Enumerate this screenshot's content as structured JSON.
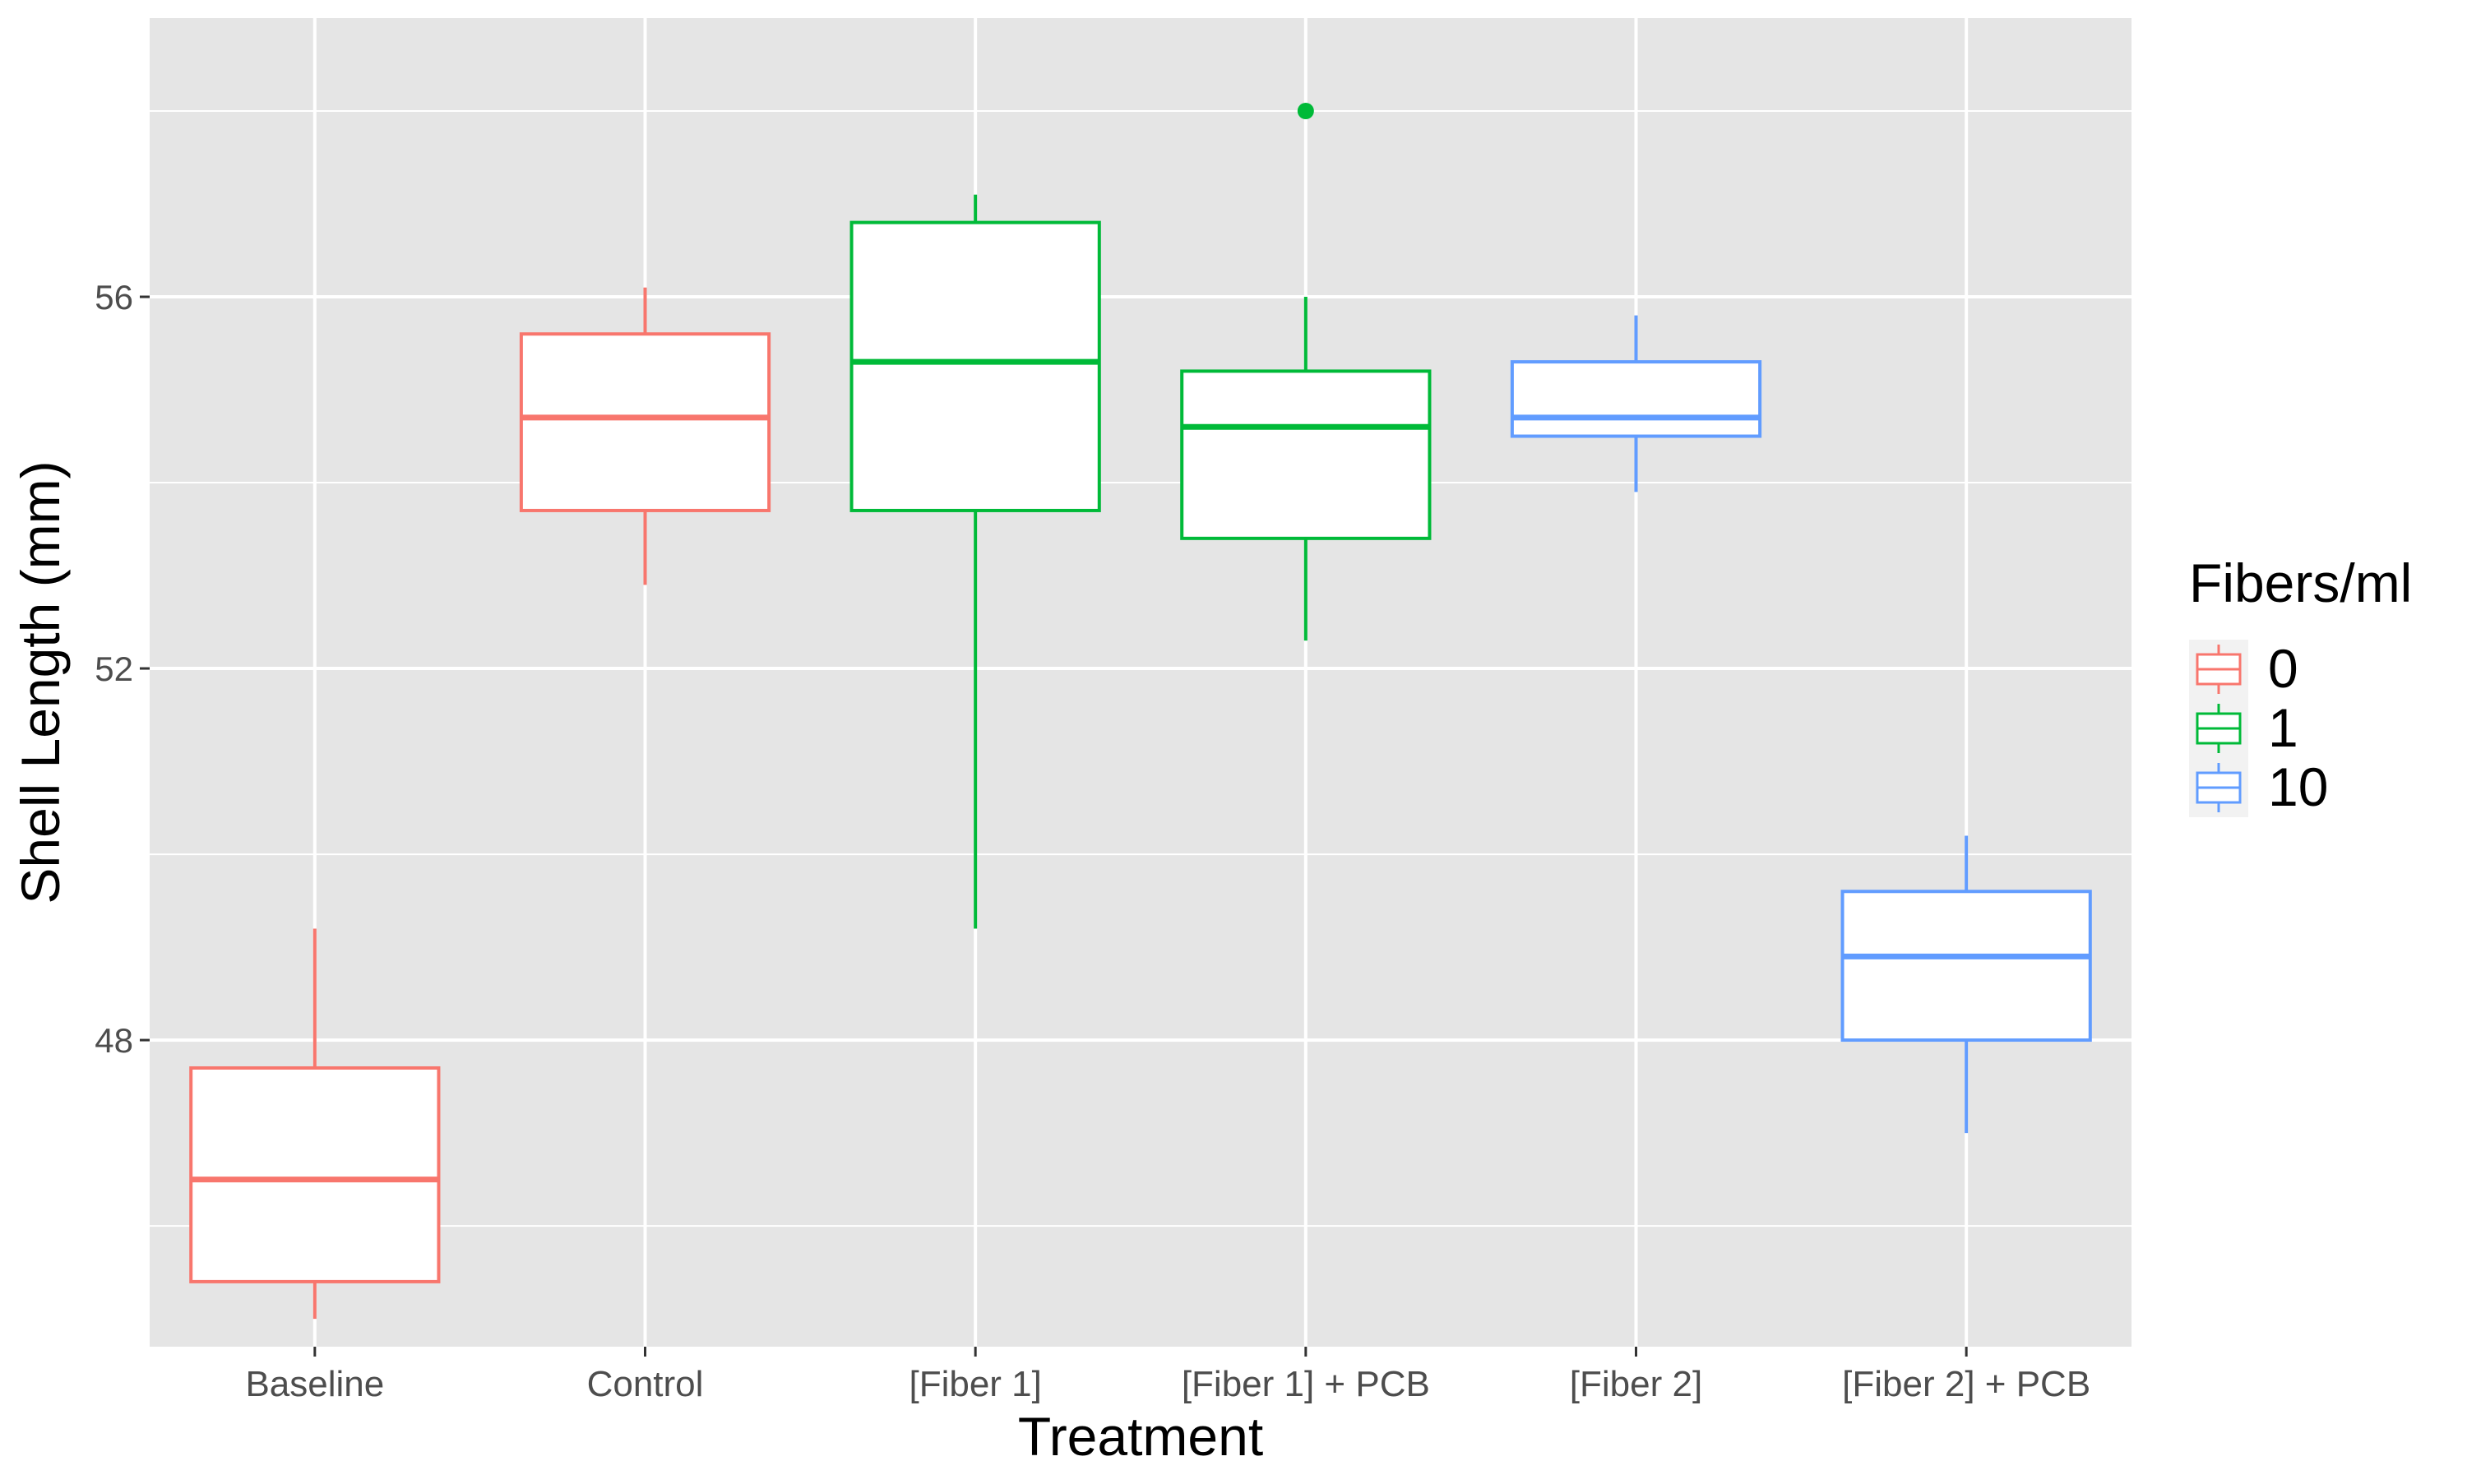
{
  "chart_data": {
    "type": "boxplot",
    "title": "",
    "xlabel": "Treatment",
    "ylabel": "Shell Length (mm)",
    "ylim": [
      44.7,
      59
    ],
    "yticks": [
      48,
      52,
      56
    ],
    "ytick_labels": [
      "48",
      "52",
      "56"
    ],
    "grid": true,
    "legend": {
      "title": "Fibers/ml",
      "placement": "right",
      "entries": [
        {
          "label": "0",
          "color": "#F8766D"
        },
        {
          "label": "1",
          "color": "#00BA38"
        },
        {
          "label": "10",
          "color": "#619CFF"
        }
      ]
    },
    "categories": [
      "Baseline",
      "Control",
      "[Fiber 1]",
      "[Fiber 1] + PCB",
      "[Fiber 2]",
      "[Fiber 2] + PCB"
    ],
    "boxes": [
      {
        "category": "Baseline",
        "group": "0",
        "whisker_low": 45.0,
        "q1": 45.4,
        "median": 46.5,
        "q3": 47.7,
        "whisker_high": 49.2,
        "outliers": []
      },
      {
        "category": "Control",
        "group": "0",
        "whisker_low": 52.9,
        "q1": 53.7,
        "median": 54.7,
        "q3": 55.6,
        "whisker_high": 56.1,
        "outliers": []
      },
      {
        "category": "[Fiber 1]",
        "group": "1",
        "whisker_low": 49.2,
        "q1": 53.7,
        "median": 55.3,
        "q3": 56.8,
        "whisker_high": 57.1,
        "outliers": []
      },
      {
        "category": "[Fiber 1] + PCB",
        "group": "1",
        "whisker_low": 52.3,
        "q1": 53.4,
        "median": 54.6,
        "q3": 55.2,
        "whisker_high": 56.0,
        "outliers": [
          58.0
        ]
      },
      {
        "category": "[Fiber 2]",
        "group": "10",
        "whisker_low": 53.9,
        "q1": 54.5,
        "median": 54.7,
        "q3": 55.3,
        "whisker_high": 55.8,
        "outliers": []
      },
      {
        "category": "[Fiber 2] + PCB",
        "group": "10",
        "whisker_low": 47.0,
        "q1": 48.0,
        "median": 48.9,
        "q3": 49.6,
        "whisker_high": 50.2,
        "outliers": []
      }
    ],
    "colors": {
      "panel_background": "#E5E5E5",
      "grid": "#FFFFFF",
      "box_fill": "#FFFFFF",
      "axis_text": "#4D4D4D",
      "title_text": "#000000"
    }
  }
}
